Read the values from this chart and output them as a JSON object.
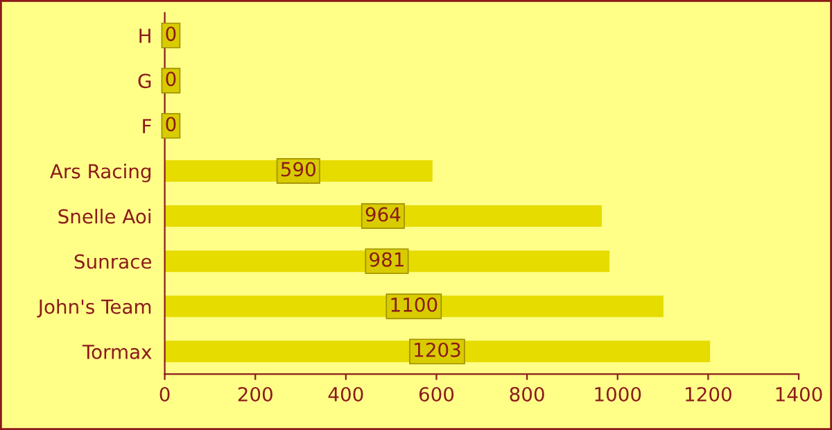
{
  "chart_data": {
    "type": "bar",
    "orientation": "horizontal",
    "categories": [
      "H",
      "G",
      "F",
      "Ars Racing",
      "Snelle Aoi",
      "Sunrace",
      "John's Team",
      "Tormax"
    ],
    "values": [
      0,
      0,
      0,
      590,
      964,
      981,
      1100,
      1203
    ],
    "color": "#e6dc00",
    "xlim": [
      0,
      1400
    ],
    "xticks": [
      0,
      200,
      400,
      600,
      800,
      1000,
      1200,
      1400
    ],
    "data_labels": true,
    "grid": false,
    "legend": false
  }
}
